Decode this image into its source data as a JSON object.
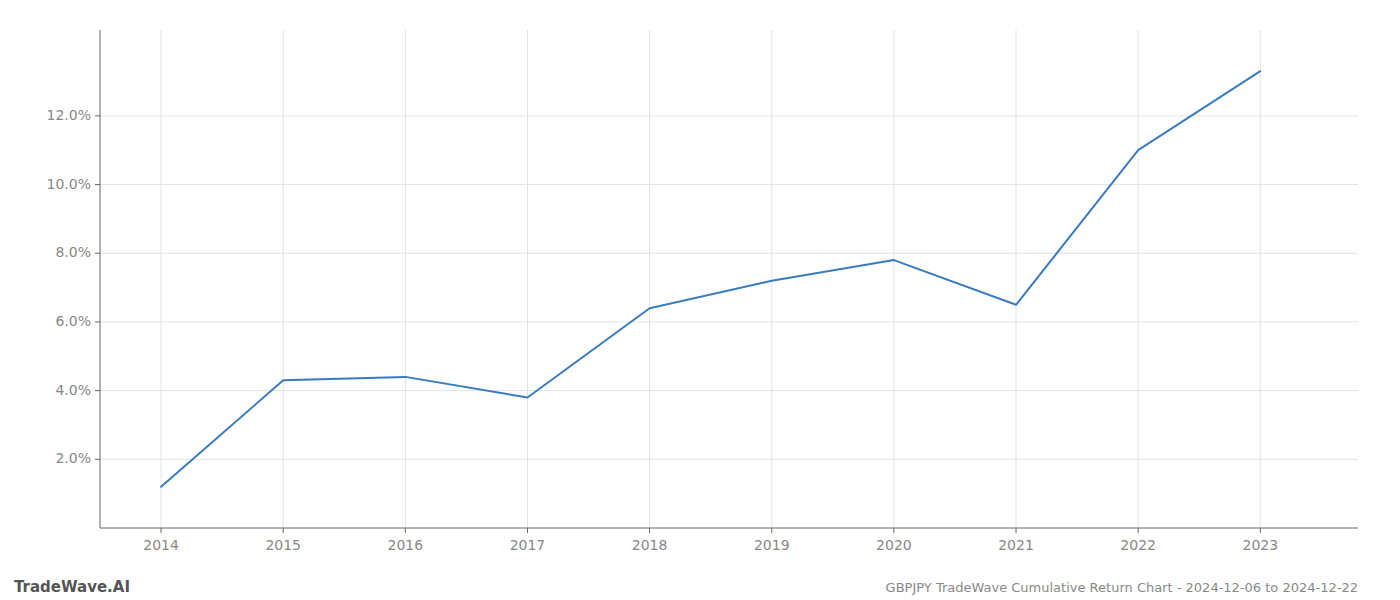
{
  "chart_data": {
    "type": "line",
    "title": "GBPJPY TradeWave Cumulative Return Chart - 2024-12-06 to 2024-12-22",
    "annotations": [
      "TradeWave.AI"
    ],
    "x": [
      2014,
      2015,
      2016,
      2017,
      2018,
      2019,
      2020,
      2021,
      2022,
      2023
    ],
    "values": [
      0.012,
      0.043,
      0.044,
      0.038,
      0.064,
      0.072,
      0.078,
      0.065,
      0.11,
      0.133
    ],
    "color": "#3a7abf",
    "xlim": [
      2013.5,
      2023.8
    ],
    "ylim": [
      0.0,
      0.145
    ],
    "xticks": [
      2014,
      2015,
      2016,
      2017,
      2018,
      2019,
      2020,
      2021,
      2022,
      2023
    ],
    "yticks": [
      {
        "value": 0.02,
        "label": "2.0%"
      },
      {
        "value": 0.04,
        "label": "4.0%"
      },
      {
        "value": 0.06,
        "label": "6.0%"
      },
      {
        "value": 0.08,
        "label": "8.0%"
      },
      {
        "value": 0.1,
        "label": "10.0%"
      },
      {
        "value": 0.12,
        "label": "12.0%"
      }
    ],
    "grid": true
  }
}
